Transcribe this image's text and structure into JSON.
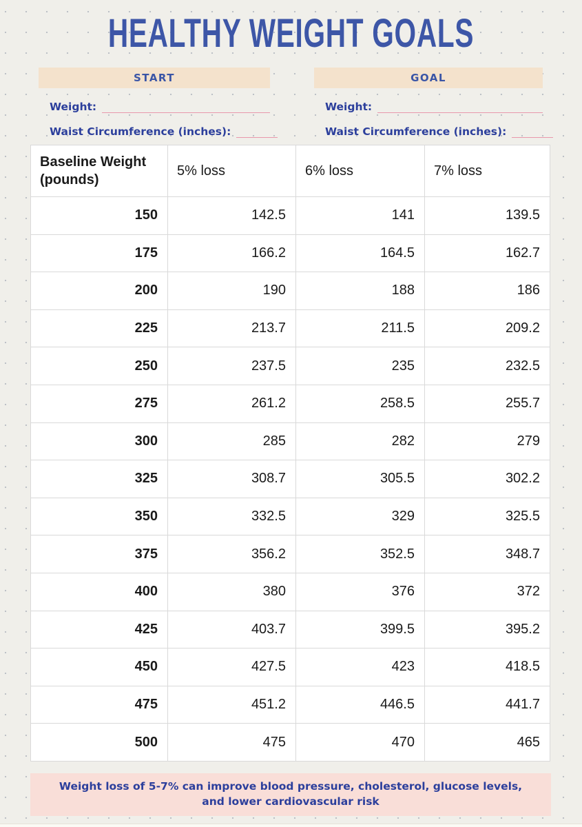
{
  "title": "HEALTHY WEIGHT GOALS",
  "start_section": {
    "header": "START",
    "weight_label": "Weight:",
    "weight_value": "",
    "waist_label": "Waist Circumference (inches):",
    "waist_value": ""
  },
  "goal_section": {
    "header": "GOAL",
    "weight_label": "Weight:",
    "weight_value": "",
    "waist_label": "Waist Circumference (inches):",
    "waist_value": ""
  },
  "table": {
    "headers": [
      "Baseline Weight (pounds)",
      "5% loss",
      "6% loss",
      "7% loss"
    ],
    "rows": [
      [
        "150",
        "142.5",
        "141",
        "139.5"
      ],
      [
        "175",
        "166.2",
        "164.5",
        "162.7"
      ],
      [
        "200",
        "190",
        "188",
        "186"
      ],
      [
        "225",
        "213.7",
        "211.5",
        "209.2"
      ],
      [
        "250",
        "237.5",
        "235",
        "232.5"
      ],
      [
        "275",
        "261.2",
        "258.5",
        "255.7"
      ],
      [
        "300",
        "285",
        "282",
        "279"
      ],
      [
        "325",
        "308.7",
        "305.5",
        "302.2"
      ],
      [
        "350",
        "332.5",
        "329",
        "325.5"
      ],
      [
        "375",
        "356.2",
        "352.5",
        "348.7"
      ],
      [
        "400",
        "380",
        "376",
        "372"
      ],
      [
        "425",
        "403.7",
        "399.5",
        "395.2"
      ],
      [
        "450",
        "427.5",
        "423",
        "418.5"
      ],
      [
        "475",
        "451.2",
        "446.5",
        "441.7"
      ],
      [
        "500",
        "475",
        "470",
        "465"
      ]
    ]
  },
  "footer": {
    "note": "Weight loss of 5-7% can improve blood pressure, cholesterol, glucose levels, and lower cardiovascular risk"
  },
  "colors": {
    "title_blue": "#3D56A7",
    "ink_blue": "#2C3F9C",
    "header_peach": "#F4E2CC",
    "line_pink": "#E897AB",
    "footer_pink": "#F9DED8",
    "table_border_gray": "#D9D9D9",
    "page_background": "#F0EFEA"
  }
}
